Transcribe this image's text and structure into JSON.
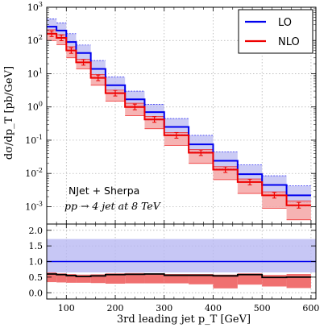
{
  "chart_data": {
    "type": "line",
    "plot_style": "step histogram with uncertainty bands, main panel and ratio panel",
    "xlabel": "3rd leading jet p_T [GeV]",
    "ylabel": "dσ/dp_T [pb/GeV]",
    "x_edges": [
      60,
      80,
      100,
      120,
      150,
      180,
      220,
      260,
      300,
      350,
      400,
      450,
      500,
      550,
      600
    ],
    "xlim": [
      60,
      610
    ],
    "x_ticks": [
      "100",
      "200",
      "300",
      "400",
      "500",
      "600"
    ],
    "main_panel": {
      "yscale": "log",
      "ylim": [
        0.0003,
        1000
      ],
      "y_ticks": [
        "10^{-3}",
        "10^{-2}",
        "10^{-1}",
        "10^{0}",
        "10^{1}",
        "10^{2}",
        "10^{3}"
      ],
      "grid": true,
      "legend_position": "top-right"
    },
    "series": [
      {
        "name": "LO",
        "color": "#0000ee",
        "band_color": "#b9b9f2",
        "values": [
          260,
          200,
          90,
          42,
          14,
          4.5,
          1.7,
          0.7,
          0.25,
          0.075,
          0.024,
          0.0095,
          0.0045,
          0.0022
        ],
        "band_low": [
          170,
          130,
          55,
          26,
          8.5,
          2.7,
          1.0,
          0.4,
          0.15,
          0.045,
          0.014,
          0.0055,
          0.0026,
          0.0013
        ],
        "band_high": [
          450,
          340,
          160,
          73,
          25,
          8,
          3,
          1.2,
          0.45,
          0.14,
          0.045,
          0.018,
          0.0085,
          0.0042
        ]
      },
      {
        "name": "NLO",
        "color": "#ee0000",
        "band_color": "#f4a6a6",
        "values": [
          160,
          120,
          50,
          22,
          7.5,
          2.6,
          1.0,
          0.42,
          0.14,
          0.042,
          0.013,
          0.0055,
          0.0022,
          0.0011
        ],
        "band_low": [
          100,
          75,
          30,
          14,
          4.5,
          1.5,
          0.55,
          0.22,
          0.07,
          0.02,
          0.0065,
          0.0025,
          0.0009,
          0.0004
        ],
        "band_high": [
          210,
          150,
          65,
          27,
          9.5,
          3.2,
          1.3,
          0.52,
          0.17,
          0.052,
          0.016,
          0.0068,
          0.0028,
          0.0015
        ]
      }
    ],
    "ratio_panel": {
      "ylim": [
        -0.2,
        2.2
      ],
      "y_ticks": [
        "0.0",
        "0.5",
        "1.0",
        "1.5",
        "2.0"
      ],
      "reference_line": 1.0,
      "lo_band": [
        0.65,
        1.72
      ],
      "nlo_ratio": [
        0.6,
        0.58,
        0.55,
        0.52,
        0.54,
        0.58,
        0.59,
        0.6,
        0.56,
        0.56,
        0.54,
        0.58,
        0.49,
        0.5
      ],
      "nlo_band_low": [
        0.34,
        0.33,
        0.32,
        0.32,
        0.31,
        0.29,
        0.3,
        0.3,
        0.3,
        0.27,
        0.14,
        0.26,
        0.2,
        0.15
      ],
      "nlo_band_high": [
        0.65,
        0.62,
        0.6,
        0.58,
        0.59,
        0.62,
        0.63,
        0.62,
        0.6,
        0.6,
        0.58,
        0.62,
        0.57,
        0.6
      ]
    },
    "annotations": [
      "NJet + Sherpa",
      "pp → 4 jet at 8 TeV"
    ]
  }
}
